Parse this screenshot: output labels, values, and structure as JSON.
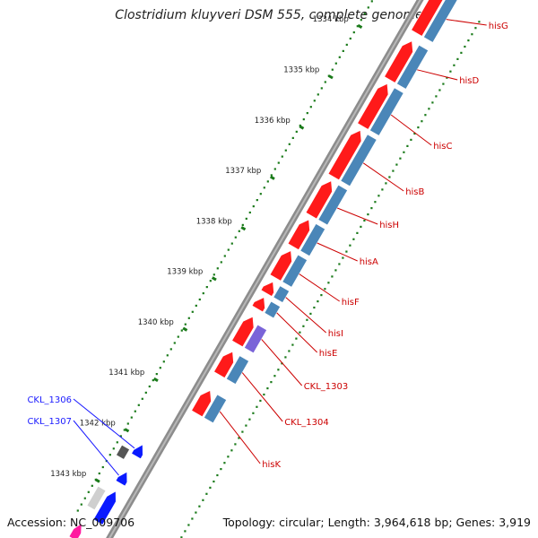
{
  "header": {
    "title": "Clostridium kluyveri DSM 555, complete genome"
  },
  "footer": {
    "accession": "Accession: NC_009706",
    "summary": "Topology: circular; Length: 3,964,618 bp; Genes: 3,919"
  },
  "colors": {
    "feature_red": "#ff1a1a",
    "feature_blue": "#0a1aff",
    "cds_blue": "#4a86b8",
    "purple": "#7a64d8",
    "gray_dark": "#555555",
    "label_red": "#cc0000",
    "label_blue": "#1a1aff",
    "tick_green": "#1a7a1a"
  },
  "scale": {
    "ticks": [
      "1334 kbp",
      "1335 kbp",
      "1336 kbp",
      "1337 kbp",
      "1338 kbp",
      "1339 kbp",
      "1340 kbp",
      "1341 kbp",
      "1342 kbp",
      "1343 kbp"
    ]
  },
  "labels": {
    "right": [
      "hisG",
      "hisD",
      "hisC",
      "hisB",
      "hisH",
      "hisA",
      "hisF",
      "hisI",
      "hisE",
      "CKL_1303",
      "CKL_1304",
      "hisK"
    ],
    "left": [
      "CKL_1306",
      "CKL_1307"
    ]
  }
}
